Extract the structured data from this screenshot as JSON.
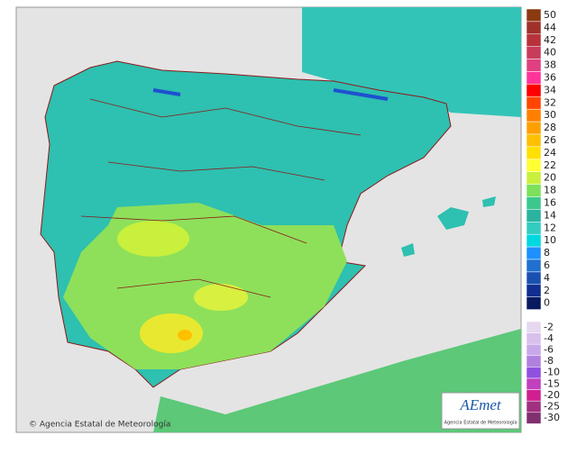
{
  "legend": {
    "positive": [
      {
        "value": 50,
        "color": "#8b3a0f"
      },
      {
        "value": 44,
        "color": "#a0302a"
      },
      {
        "value": 42,
        "color": "#b8323a"
      },
      {
        "value": 40,
        "color": "#c83c5a"
      },
      {
        "value": 38,
        "color": "#e04080"
      },
      {
        "value": 36,
        "color": "#ff3399"
      },
      {
        "value": 34,
        "color": "#ff0000"
      },
      {
        "value": 32,
        "color": "#ff4500"
      },
      {
        "value": 30,
        "color": "#ff7f00"
      },
      {
        "value": 28,
        "color": "#ffa000"
      },
      {
        "value": 26,
        "color": "#ffc000"
      },
      {
        "value": 24,
        "color": "#ffe000"
      },
      {
        "value": 22,
        "color": "#ffff33"
      },
      {
        "value": 20,
        "color": "#c8f03c"
      },
      {
        "value": 18,
        "color": "#7de05a"
      },
      {
        "value": 16,
        "color": "#3cc88c"
      },
      {
        "value": 14,
        "color": "#2ab4a0"
      },
      {
        "value": 12,
        "color": "#33ccc0"
      },
      {
        "value": 10,
        "color": "#00d8e0"
      },
      {
        "value": 8,
        "color": "#1e90ff"
      },
      {
        "value": 6,
        "color": "#2070d0"
      },
      {
        "value": 4,
        "color": "#1a50b0"
      },
      {
        "value": 2,
        "color": "#102f90"
      },
      {
        "value": 0,
        "color": "#0a1a60"
      }
    ],
    "negative": [
      {
        "value": -2,
        "color": "#e6d8f0"
      },
      {
        "value": -4,
        "color": "#d8c0ec"
      },
      {
        "value": -6,
        "color": "#c8a8e8"
      },
      {
        "value": -8,
        "color": "#b080e0"
      },
      {
        "value": -10,
        "color": "#9050e0"
      },
      {
        "value": -15,
        "color": "#c040c0"
      },
      {
        "value": -20,
        "color": "#d02090"
      },
      {
        "value": -25,
        "color": "#a03080"
      },
      {
        "value": -30,
        "color": "#803070"
      }
    ]
  },
  "copyright": "© Agencia Estatal de Meteorología",
  "logo": {
    "name": "AEmet",
    "subtitle": "Agencia Estatal de Meteorología"
  }
}
